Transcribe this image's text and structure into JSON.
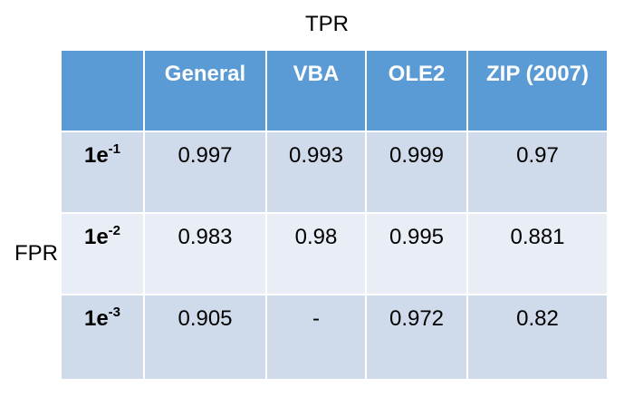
{
  "titles": {
    "top": "TPR",
    "left": "FPR"
  },
  "table": {
    "header": [
      "",
      "General",
      "VBA",
      "OLE2",
      "ZIP (2007)"
    ],
    "rows": [
      {
        "label_base": "1e",
        "label_exp": "-1",
        "values": [
          "0.997",
          "0.993",
          "0.999",
          "0.97"
        ]
      },
      {
        "label_base": "1e",
        "label_exp": "-2",
        "values": [
          "0.983",
          "0.98",
          "0.995",
          "0.881"
        ]
      },
      {
        "label_base": "1e",
        "label_exp": "-3",
        "values": [
          "0.905",
          "-",
          "0.972",
          "0.82"
        ]
      }
    ]
  },
  "colors": {
    "header": "#5b9bd5",
    "row_dark": "#cfdaea",
    "row_light": "#e9edf5"
  }
}
